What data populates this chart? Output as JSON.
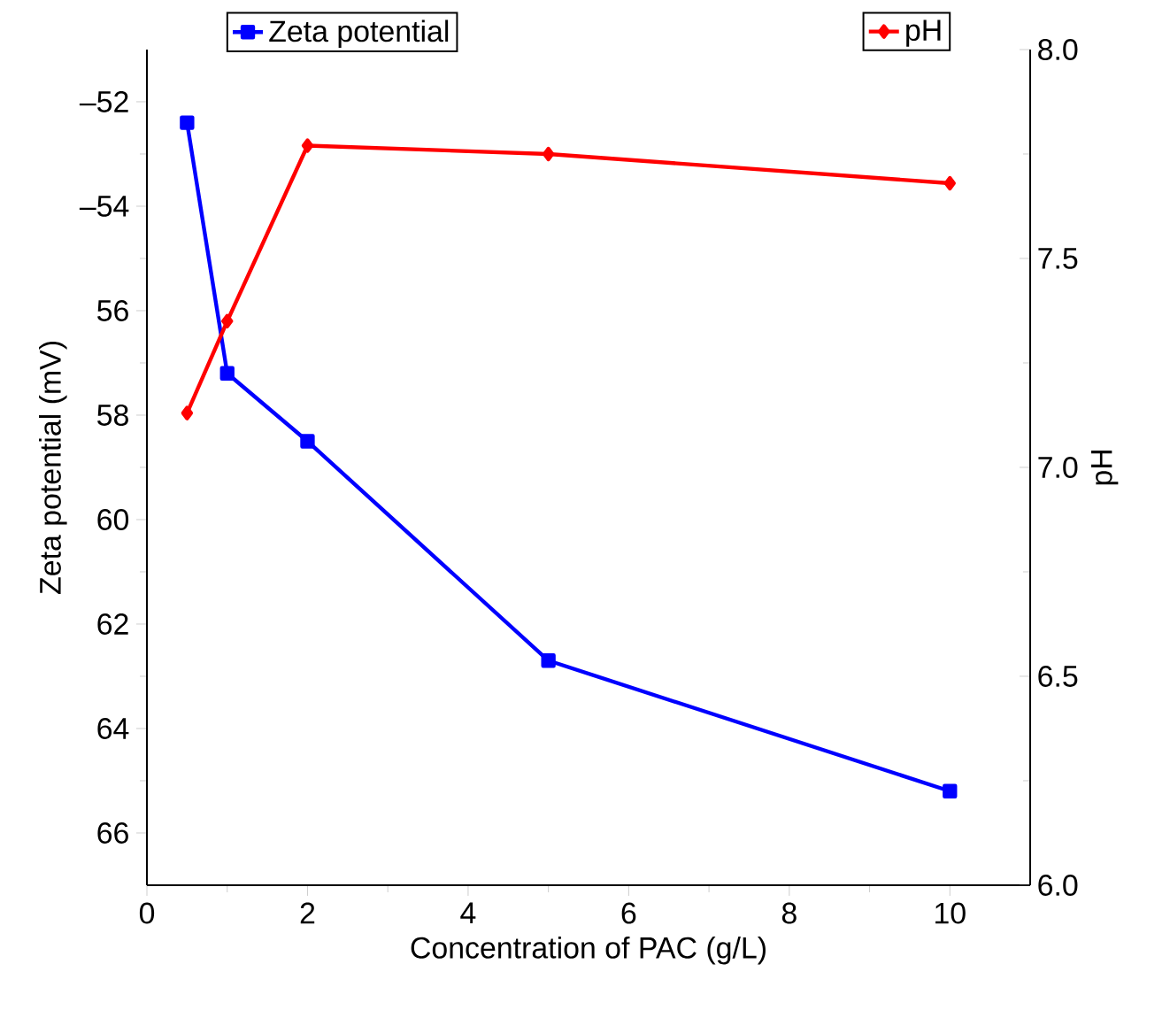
{
  "chart_data": {
    "type": "line",
    "xlabel": "Concentration of PAC (g/L)",
    "ylabel": "Zeta potential (mV)",
    "y2label": "pH",
    "xlim": [
      0,
      11
    ],
    "xticks": [
      0,
      2,
      4,
      6,
      8,
      10
    ],
    "ylim": [
      -67,
      -51
    ],
    "yticks": [
      {
        "value": -52,
        "label": "–52"
      },
      {
        "value": -54,
        "label": "–54"
      },
      {
        "value": -56,
        "label": "56"
      },
      {
        "value": -58,
        "label": "58"
      },
      {
        "value": -60,
        "label": "60"
      },
      {
        "value": -62,
        "label": "62"
      },
      {
        "value": -64,
        "label": "64"
      },
      {
        "value": -66,
        "label": "66"
      }
    ],
    "y2lim": [
      6,
      8
    ],
    "y2ticks": [
      {
        "value": 6,
        "label": "6.0"
      },
      {
        "value": 6.5,
        "label": "6.5"
      },
      {
        "value": 7,
        "label": "7.0"
      },
      {
        "value": 7.5,
        "label": "7.5"
      },
      {
        "value": 8,
        "label": "8.0"
      }
    ],
    "legend": "top",
    "line_style": "solid",
    "series": [
      {
        "name": "Zeta potential",
        "color": "#0000ff",
        "marker": "square",
        "x": [
          0.5,
          1,
          2,
          5,
          10
        ],
        "values": [
          -52.4,
          -57.2,
          -58.5,
          -62.7,
          -65.2
        ]
      },
      {
        "name": "pH",
        "color": "#ff0000",
        "marker": "diamond",
        "axis": "y2",
        "x": [
          0.5,
          1,
          2,
          5,
          10
        ],
        "values": [
          7.13,
          7.35,
          7.77,
          7.75,
          7.68
        ]
      }
    ]
  }
}
